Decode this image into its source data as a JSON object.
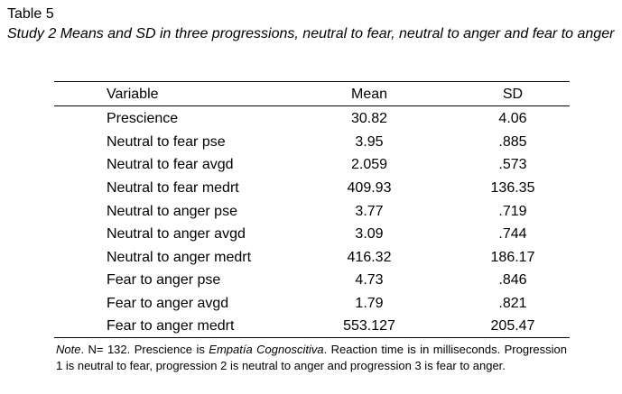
{
  "table_label": "Table 5",
  "caption": "Study 2 Means and SD in three progressions, neutral to fear, neutral to anger and fear to anger",
  "columns": {
    "variable": "Variable",
    "mean": "Mean",
    "sd": "SD"
  },
  "rows": [
    {
      "variable": "Prescience",
      "mean": "30.82",
      "sd": "4.06"
    },
    {
      "variable": "Neutral to fear pse",
      "mean": "3.95",
      "sd": ".885"
    },
    {
      "variable": "Neutral to fear avgd",
      "mean": "2.059",
      "sd": ".573"
    },
    {
      "variable": "Neutral to fear medrt",
      "mean": "409.93",
      "sd": "136.35"
    },
    {
      "variable": "Neutral to anger pse",
      "mean": "3.77",
      "sd": ".719"
    },
    {
      "variable": "Neutral to anger avgd",
      "mean": "3.09",
      "sd": ".744"
    },
    {
      "variable": "Neutral to anger medrt",
      "mean": "416.32",
      "sd": "186.17"
    },
    {
      "variable": "Fear to anger pse",
      "mean": "4.73",
      "sd": ".846"
    },
    {
      "variable": "Fear to anger avgd",
      "mean": "1.79",
      "sd": ".821"
    },
    {
      "variable": "Fear to anger medrt",
      "mean": "553.127",
      "sd": "205.47"
    }
  ],
  "note": {
    "label": "Note",
    "text_1": ". N= 132. Prescience is ",
    "emphasis": "Empatía Cognoscitiva",
    "text_2": ". Reaction time is in milliseconds. Progression 1 is neutral to fear, progression 2 is neutral to anger and progression 3 is fear to anger."
  }
}
